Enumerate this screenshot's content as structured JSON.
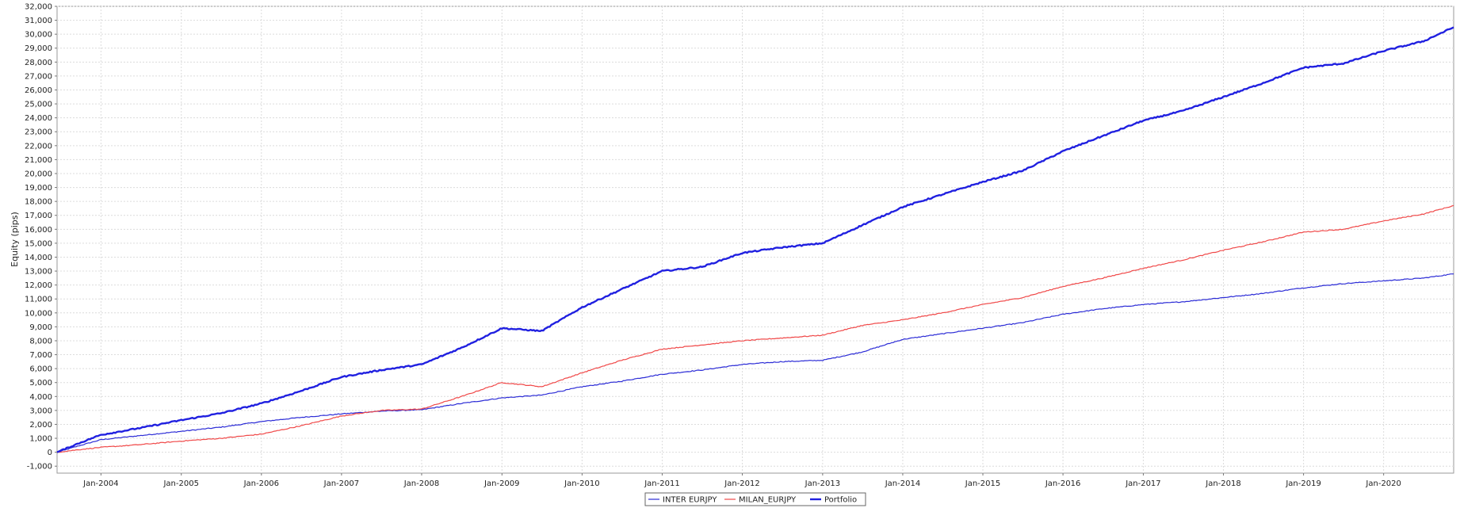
{
  "chart_data": {
    "type": "line",
    "title": "",
    "xlabel": "",
    "ylabel": "Equity (pips)",
    "ylim": [
      -1500,
      32000
    ],
    "xlim": [
      "2003-06-15",
      "2020-11-15"
    ],
    "grid": true,
    "legend_position": "bottom-center",
    "y_ticks": [
      -1000,
      0,
      1000,
      2000,
      3000,
      4000,
      5000,
      6000,
      7000,
      8000,
      9000,
      10000,
      11000,
      12000,
      13000,
      14000,
      15000,
      16000,
      17000,
      18000,
      19000,
      20000,
      21000,
      22000,
      23000,
      24000,
      25000,
      26000,
      27000,
      28000,
      29000,
      30000,
      31000,
      32000
    ],
    "y_tick_labels": [
      "-1,000",
      "0",
      "1,000",
      "2,000",
      "3,000",
      "4,000",
      "5,000",
      "6,000",
      "7,000",
      "8,000",
      "9,000",
      "10,000",
      "11,000",
      "12,000",
      "13,000",
      "14,000",
      "15,000",
      "16,000",
      "17,000",
      "18,000",
      "19,000",
      "20,000",
      "21,000",
      "22,000",
      "23,000",
      "24,000",
      "25,000",
      "26,000",
      "27,000",
      "28,000",
      "29,000",
      "30,000",
      "31,000",
      "32,000"
    ],
    "x_ticks": [
      "2004-01-01",
      "2005-01-01",
      "2006-01-01",
      "2007-01-01",
      "2008-01-01",
      "2009-01-01",
      "2010-01-01",
      "2011-01-01",
      "2012-01-01",
      "2013-01-01",
      "2014-01-01",
      "2015-01-01",
      "2016-01-01",
      "2017-01-01",
      "2018-01-01",
      "2019-01-01",
      "2020-01-01"
    ],
    "x_tick_labels": [
      "Jan-2004",
      "Jan-2005",
      "Jan-2006",
      "Jan-2007",
      "Jan-2008",
      "Jan-2009",
      "Jan-2010",
      "Jan-2011",
      "Jan-2012",
      "Jan-2013",
      "Jan-2014",
      "Jan-2015",
      "Jan-2016",
      "Jan-2017",
      "Jan-2018",
      "Jan-2019",
      "Jan-2020"
    ],
    "series": [
      {
        "name": "INTER EURJPY",
        "color": "#2b2bd6",
        "width": 1.2,
        "x": [
          "2003-06-15",
          "2003-10-01",
          "2004-01-01",
          "2004-07-01",
          "2005-01-01",
          "2005-07-01",
          "2006-01-01",
          "2006-07-01",
          "2007-01-01",
          "2007-07-01",
          "2008-01-01",
          "2008-07-01",
          "2009-01-01",
          "2009-07-01",
          "2010-01-01",
          "2010-07-01",
          "2011-01-01",
          "2011-07-01",
          "2012-01-01",
          "2012-07-01",
          "2013-01-01",
          "2013-07-01",
          "2014-01-01",
          "2014-07-01",
          "2015-01-01",
          "2015-07-01",
          "2016-01-01",
          "2016-07-01",
          "2017-01-01",
          "2017-07-01",
          "2018-01-01",
          "2018-07-01",
          "2019-01-01",
          "2019-07-01",
          "2020-01-01",
          "2020-07-01",
          "2020-11-15"
        ],
        "y": [
          0,
          500,
          900,
          1200,
          1500,
          1800,
          2200,
          2500,
          2750,
          2950,
          3050,
          3500,
          3900,
          4100,
          4700,
          5100,
          5600,
          5900,
          6300,
          6500,
          6600,
          7200,
          8100,
          8500,
          8900,
          9300,
          9900,
          10300,
          10600,
          10800,
          11100,
          11400,
          11800,
          12100,
          12300,
          12500,
          12800
        ]
      },
      {
        "name": "MILAN_EURJPY",
        "color": "#f04848",
        "width": 1.2,
        "x": [
          "2003-06-15",
          "2003-10-01",
          "2004-01-01",
          "2004-07-01",
          "2005-01-01",
          "2005-07-01",
          "2006-01-01",
          "2006-07-01",
          "2007-01-01",
          "2007-07-01",
          "2008-01-01",
          "2008-07-01",
          "2009-01-01",
          "2009-07-01",
          "2010-01-01",
          "2010-07-01",
          "2011-01-01",
          "2011-07-01",
          "2012-01-01",
          "2012-07-01",
          "2013-01-01",
          "2013-07-01",
          "2014-01-01",
          "2014-07-01",
          "2015-01-01",
          "2015-07-01",
          "2016-01-01",
          "2016-07-01",
          "2017-01-01",
          "2017-07-01",
          "2018-01-01",
          "2018-07-01",
          "2019-01-01",
          "2019-07-01",
          "2020-01-01",
          "2020-07-01",
          "2020-11-15"
        ],
        "y": [
          0,
          200,
          350,
          550,
          800,
          1000,
          1300,
          1900,
          2600,
          3000,
          3100,
          4000,
          5000,
          4700,
          5700,
          6600,
          7400,
          7700,
          8000,
          8200,
          8400,
          9100,
          9500,
          10000,
          10600,
          11100,
          11900,
          12500,
          13200,
          13800,
          14500,
          15100,
          15800,
          16000,
          16600,
          17100,
          17700
        ]
      },
      {
        "name": "Portfolio",
        "color": "#2020e0",
        "width": 2.4,
        "x": [
          "2003-06-15",
          "2003-10-01",
          "2004-01-01",
          "2004-07-01",
          "2005-01-01",
          "2005-07-01",
          "2006-01-01",
          "2006-07-01",
          "2007-01-01",
          "2007-07-01",
          "2008-01-01",
          "2008-07-01",
          "2009-01-01",
          "2009-07-01",
          "2010-01-01",
          "2010-07-01",
          "2011-01-01",
          "2011-07-01",
          "2012-01-01",
          "2012-07-01",
          "2013-01-01",
          "2013-07-01",
          "2014-01-01",
          "2014-07-01",
          "2015-01-01",
          "2015-07-01",
          "2016-01-01",
          "2016-07-01",
          "2017-01-01",
          "2017-07-01",
          "2018-01-01",
          "2018-07-01",
          "2019-01-01",
          "2019-07-01",
          "2020-01-01",
          "2020-07-01",
          "2020-11-15"
        ],
        "y": [
          0,
          700,
          1250,
          1750,
          2300,
          2800,
          3500,
          4400,
          5400,
          5900,
          6300,
          7500,
          8900,
          8700,
          10400,
          11700,
          13000,
          13300,
          14300,
          14700,
          15000,
          16300,
          17600,
          18500,
          19400,
          20200,
          21600,
          22700,
          23800,
          24500,
          25500,
          26500,
          27600,
          27900,
          28800,
          29500,
          30500
        ]
      }
    ]
  }
}
